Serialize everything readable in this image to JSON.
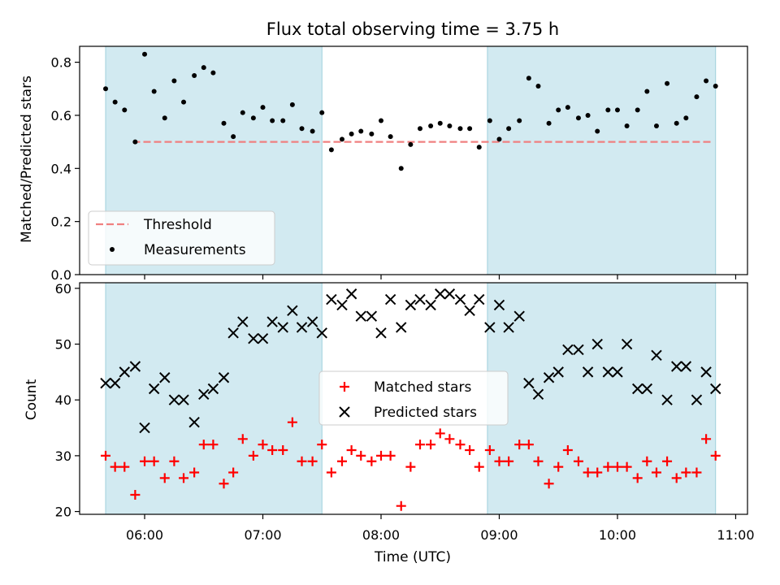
{
  "chart_data": [
    {
      "type": "scatter",
      "title": "Flux total observing time = 3.75 h",
      "xlabel": "",
      "ylabel": "Matched/Predicted stars",
      "ylim": [
        0,
        0.86
      ],
      "yticks": [
        "0.0",
        "0.2",
        "0.4",
        "0.6",
        "0.8"
      ],
      "x_time_range_hours": [
        5.45,
        11.1
      ],
      "shaded_intervals_hours": [
        [
          5.67,
          7.5
        ],
        [
          8.9,
          10.83
        ]
      ],
      "legend_position": "lower-left",
      "threshold": {
        "name": "Threshold",
        "value": 0.5,
        "color": "#f08080",
        "style": "dashed",
        "x_range_hours": [
          5.9,
          10.8
        ]
      },
      "series": [
        {
          "name": "Measurements",
          "color": "#000000",
          "marker": "dot",
          "x": [
            5.67,
            5.75,
            5.83,
            5.92,
            6.0,
            6.08,
            6.17,
            6.25,
            6.33,
            6.42,
            6.5,
            6.58,
            6.67,
            6.75,
            6.83,
            6.92,
            7.0,
            7.08,
            7.17,
            7.25,
            7.33,
            7.42,
            7.5,
            7.58,
            7.67,
            7.75,
            7.83,
            7.92,
            8.0,
            8.08,
            8.17,
            8.25,
            8.33,
            8.42,
            8.5,
            8.58,
            8.67,
            8.75,
            8.83,
            8.92,
            9.0,
            9.08,
            9.17,
            9.25,
            9.33,
            9.42,
            9.5,
            9.58,
            9.67,
            9.75,
            9.83,
            9.92,
            10.0,
            10.08,
            10.17,
            10.25,
            10.33,
            10.42,
            10.5,
            10.58,
            10.67,
            10.75,
            10.83
          ],
          "y": [
            0.7,
            0.65,
            0.62,
            0.5,
            0.83,
            0.69,
            0.59,
            0.73,
            0.65,
            0.75,
            0.78,
            0.76,
            0.57,
            0.52,
            0.61,
            0.59,
            0.63,
            0.58,
            0.58,
            0.64,
            0.55,
            0.54,
            0.61,
            0.47,
            0.51,
            0.53,
            0.54,
            0.53,
            0.58,
            0.52,
            0.4,
            0.49,
            0.55,
            0.56,
            0.57,
            0.56,
            0.55,
            0.55,
            0.48,
            0.58,
            0.51,
            0.55,
            0.58,
            0.74,
            0.71,
            0.57,
            0.62,
            0.63,
            0.59,
            0.6,
            0.54,
            0.62,
            0.62,
            0.56,
            0.62,
            0.69,
            0.56,
            0.72,
            0.57,
            0.59,
            0.67,
            0.73,
            0.71
          ]
        }
      ]
    },
    {
      "type": "scatter",
      "title": "",
      "xlabel": "Time (UTC)",
      "ylabel": "Count",
      "ylim": [
        19.5,
        61
      ],
      "yticks": [
        "20",
        "30",
        "40",
        "50",
        "60"
      ],
      "xticks": [
        "06:00",
        "07:00",
        "08:00",
        "09:00",
        "10:00",
        "11:00"
      ],
      "x_time_range_hours": [
        5.45,
        11.1
      ],
      "shaded_intervals_hours": [
        [
          5.67,
          7.5
        ],
        [
          8.9,
          10.83
        ]
      ],
      "legend_position": "center",
      "series": [
        {
          "name": "Matched stars",
          "color": "#ff0000",
          "marker": "plus",
          "x": [
            5.67,
            5.75,
            5.83,
            5.92,
            6.0,
            6.08,
            6.17,
            6.25,
            6.33,
            6.42,
            6.5,
            6.58,
            6.67,
            6.75,
            6.83,
            6.92,
            7.0,
            7.08,
            7.17,
            7.25,
            7.33,
            7.42,
            7.5,
            7.58,
            7.67,
            7.75,
            7.83,
            7.92,
            8.0,
            8.08,
            8.17,
            8.25,
            8.33,
            8.42,
            8.5,
            8.58,
            8.67,
            8.75,
            8.83,
            8.92,
            9.0,
            9.08,
            9.17,
            9.25,
            9.33,
            9.42,
            9.5,
            9.58,
            9.67,
            9.75,
            9.83,
            9.92,
            10.0,
            10.08,
            10.17,
            10.25,
            10.33,
            10.42,
            10.5,
            10.58,
            10.67,
            10.75,
            10.83
          ],
          "y": [
            30,
            28,
            28,
            23,
            29,
            29,
            26,
            29,
            26,
            27,
            32,
            32,
            25,
            27,
            33,
            30,
            32,
            31,
            31,
            36,
            29,
            29,
            32,
            27,
            29,
            31,
            30,
            29,
            30,
            30,
            21,
            28,
            32,
            32,
            34,
            33,
            32,
            31,
            28,
            31,
            29,
            29,
            32,
            32,
            29,
            25,
            28,
            31,
            29,
            27,
            27,
            28,
            28,
            28,
            26,
            29,
            27,
            29,
            26,
            27,
            27,
            33,
            30
          ]
        },
        {
          "name": "Predicted stars",
          "color": "#000000",
          "marker": "x",
          "x": [
            5.67,
            5.75,
            5.83,
            5.92,
            6.0,
            6.08,
            6.17,
            6.25,
            6.33,
            6.42,
            6.5,
            6.58,
            6.67,
            6.75,
            6.83,
            6.92,
            7.0,
            7.08,
            7.17,
            7.25,
            7.33,
            7.42,
            7.5,
            7.58,
            7.67,
            7.75,
            7.83,
            7.92,
            8.0,
            8.08,
            8.17,
            8.25,
            8.33,
            8.42,
            8.5,
            8.58,
            8.67,
            8.75,
            8.83,
            8.92,
            9.0,
            9.08,
            9.17,
            9.25,
            9.33,
            9.42,
            9.5,
            9.58,
            9.67,
            9.75,
            9.83,
            9.92,
            10.0,
            10.08,
            10.17,
            10.25,
            10.33,
            10.42,
            10.5,
            10.58,
            10.67,
            10.75,
            10.83
          ],
          "y": [
            43,
            43,
            45,
            46,
            35,
            42,
            44,
            40,
            40,
            36,
            41,
            42,
            44,
            52,
            54,
            51,
            51,
            54,
            53,
            56,
            53,
            54,
            52,
            58,
            57,
            59,
            55,
            55,
            52,
            58,
            53,
            57,
            58,
            57,
            59,
            59,
            58,
            56,
            58,
            53,
            57,
            53,
            55,
            43,
            41,
            44,
            45,
            49,
            49,
            45,
            50,
            45,
            45,
            50,
            42,
            42,
            48,
            40,
            46,
            46,
            40,
            45,
            42
          ]
        }
      ]
    }
  ]
}
